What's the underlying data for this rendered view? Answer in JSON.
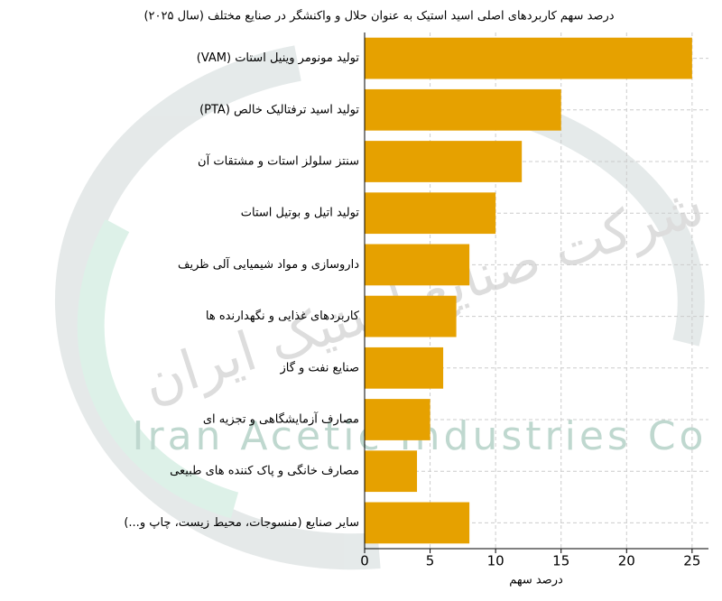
{
  "chart_data": {
    "type": "barh",
    "title": "درصد سهم کاربردهای اصلی اسید استیک به عنوان حلال و واکنشگر در صنایع مختلف (سال ۲۰۲۵)",
    "xlabel": "درصد سهم",
    "categories": [
      "تولید مونومر وینیل استات (VAM)",
      "تولید اسید ترفتالیک خالص (PTA)",
      "سنتز سلولز استات و مشتقات آن",
      "تولید اتیل و بوتیل استات",
      "داروسازی و مواد شیمیایی آلی ظریف",
      "کاربردهای غذایی و نگهدارنده ها",
      "صنایع نفت و گاز",
      "مصارف آزمایشگاهی و تجزیه ای",
      "مصارف خانگی و پاک کننده های طبیعی",
      "سایر صنایع (منسوجات، محیط زیست، چاپ و...)"
    ],
    "values": [
      25,
      15,
      12,
      10,
      8,
      7,
      6,
      5,
      4,
      8
    ],
    "color": "#e6a100",
    "xlim": [
      0,
      26.25
    ],
    "xticks": [
      0,
      5,
      10,
      15,
      20,
      25
    ],
    "grid": true,
    "watermark": {
      "latin": "Iran Acetic Industries Co",
      "persian": "شرکت صنایع استیک ایران"
    }
  }
}
